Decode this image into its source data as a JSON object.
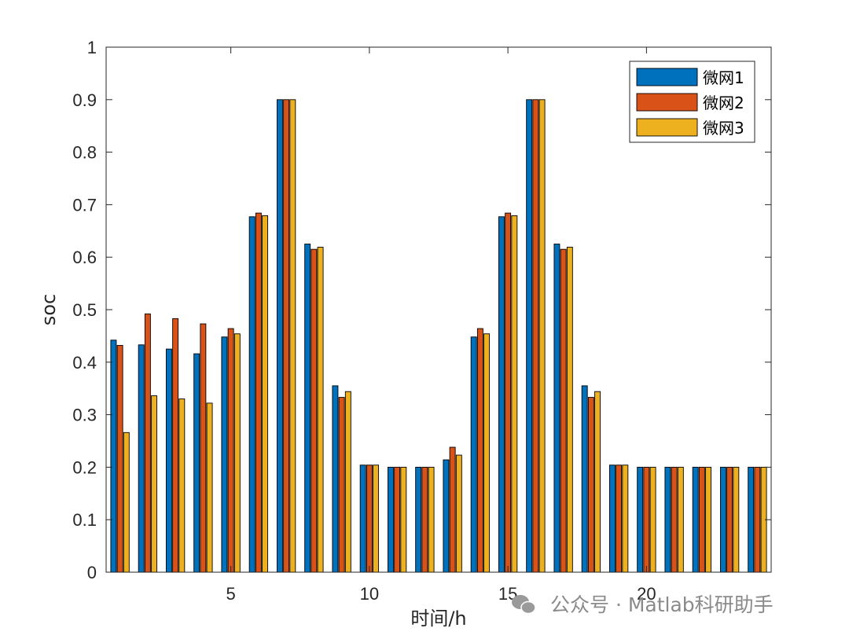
{
  "chart_data": {
    "type": "bar",
    "title": "",
    "xlabel": "时间/h",
    "ylabel": "soc",
    "xlim": [
      0.5,
      24.5
    ],
    "ylim": [
      0,
      1
    ],
    "x": [
      1,
      2,
      3,
      4,
      5,
      6,
      7,
      8,
      9,
      10,
      11,
      12,
      13,
      14,
      15,
      16,
      17,
      18,
      19,
      20,
      21,
      22,
      23,
      24
    ],
    "xticks": [
      "5",
      "10",
      "15",
      "20"
    ],
    "xtick_values": [
      5,
      10,
      15,
      20
    ],
    "yticks": [
      "0",
      "0.1",
      "0.2",
      "0.3",
      "0.4",
      "0.5",
      "0.6",
      "0.7",
      "0.8",
      "0.9",
      "1"
    ],
    "ytick_values": [
      0,
      0.1,
      0.2,
      0.3,
      0.4,
      0.5,
      0.6,
      0.7,
      0.8,
      0.9,
      1.0
    ],
    "grid": false,
    "legend_position": "top-right",
    "series": [
      {
        "name": "微网1",
        "color": "#0072BD",
        "values": [
          0.442,
          0.433,
          0.425,
          0.416,
          0.448,
          0.677,
          0.9,
          0.625,
          0.355,
          0.204,
          0.2,
          0.2,
          0.214,
          0.448,
          0.677,
          0.9,
          0.625,
          0.355,
          0.204,
          0.2,
          0.2,
          0.2,
          0.2,
          0.2
        ]
      },
      {
        "name": "微网2",
        "color": "#D95319",
        "values": [
          0.432,
          0.492,
          0.483,
          0.473,
          0.464,
          0.684,
          0.9,
          0.615,
          0.333,
          0.204,
          0.2,
          0.2,
          0.238,
          0.464,
          0.684,
          0.9,
          0.615,
          0.333,
          0.204,
          0.2,
          0.2,
          0.2,
          0.2,
          0.2
        ]
      },
      {
        "name": "微网3",
        "color": "#EDB120",
        "values": [
          0.266,
          0.336,
          0.33,
          0.322,
          0.454,
          0.679,
          0.9,
          0.619,
          0.344,
          0.204,
          0.2,
          0.2,
          0.223,
          0.454,
          0.679,
          0.9,
          0.619,
          0.344,
          0.204,
          0.2,
          0.2,
          0.2,
          0.2,
          0.2
        ]
      }
    ]
  },
  "watermark": {
    "text": "公众号 · Matlab科研助手",
    "icon": "wechat-icon"
  }
}
